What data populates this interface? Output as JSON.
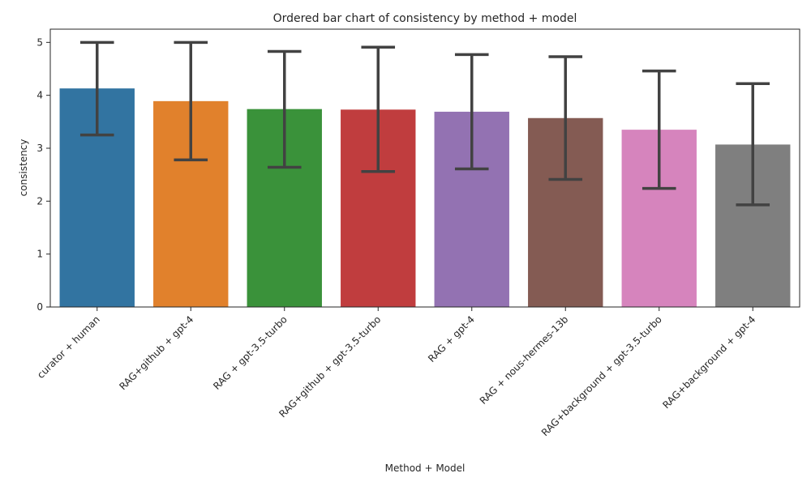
{
  "chart_data": {
    "type": "bar",
    "title": "Ordered bar chart of consistency by method + model",
    "xlabel": "Method + Model",
    "ylabel": "consistency",
    "ylim": [
      0,
      5.25
    ],
    "yticks": [
      0,
      1,
      2,
      3,
      4,
      5
    ],
    "grid": false,
    "legend": "none",
    "categories": [
      "curator + human",
      "RAG+github + gpt-4",
      "RAG + gpt-3.5-turbo",
      "RAG+github + gpt-3.5-turbo",
      "RAG + gpt-4",
      "RAG + nous-hermes-13b",
      "RAG+background + gpt-3.5-turbo",
      "RAG+background + gpt-4"
    ],
    "values": [
      4.13,
      3.89,
      3.74,
      3.73,
      3.69,
      3.57,
      3.35,
      3.07
    ],
    "error_low": [
      3.25,
      2.78,
      2.64,
      2.56,
      2.61,
      2.41,
      2.24,
      1.93
    ],
    "error_high": [
      5.0,
      5.0,
      4.83,
      4.91,
      4.77,
      4.73,
      4.46,
      4.22
    ],
    "colors": [
      "#3274a1",
      "#e1812c",
      "#3a923a",
      "#c03d3e",
      "#9372b2",
      "#845b53",
      "#d684bd",
      "#7f7f7f"
    ],
    "error_color": "#424242"
  }
}
